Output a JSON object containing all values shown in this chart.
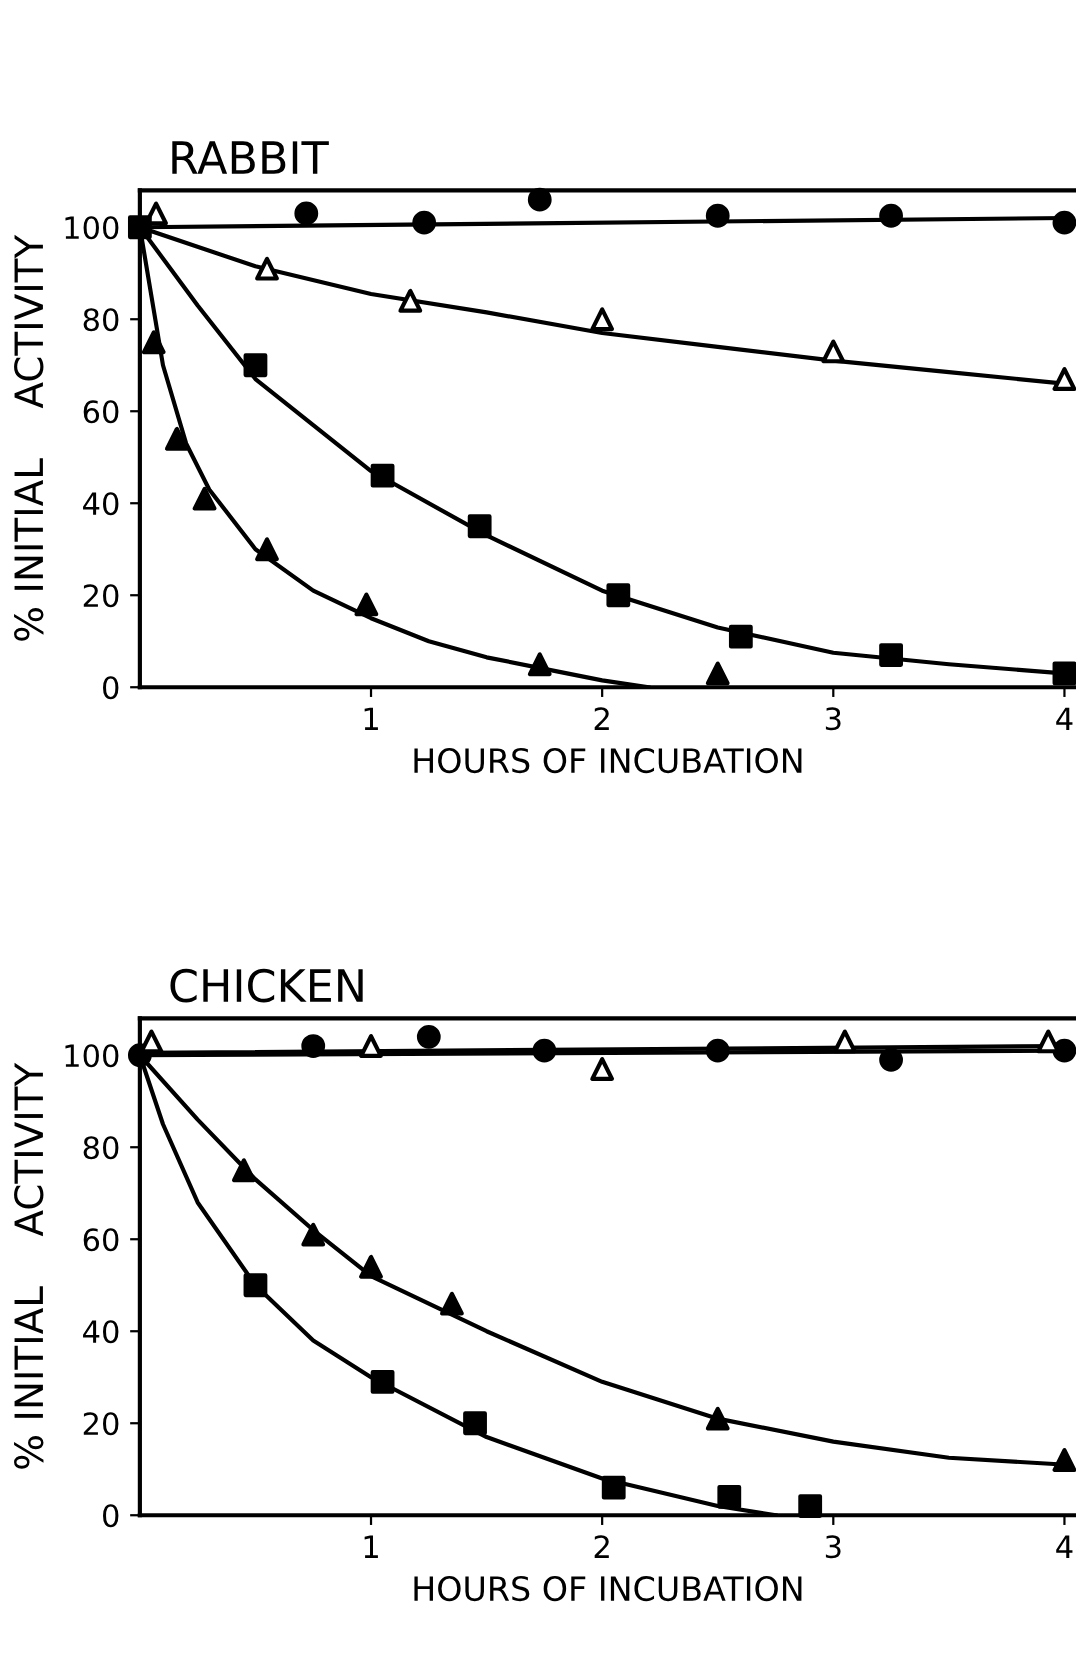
{
  "chart_data": [
    {
      "type": "scatter",
      "title": "RABBIT",
      "xlabel": "HOURS OF INCUBATION",
      "ylabel": "% INITIAL    ACTIVITY",
      "xlim": [
        0,
        4.05
      ],
      "ylim": [
        0,
        108
      ],
      "xticks": [
        1,
        2,
        3,
        4
      ],
      "yticks": [
        0,
        20,
        40,
        60,
        80,
        100
      ],
      "grid": false,
      "legend": false,
      "series": [
        {
          "marker": "circle",
          "color": "#000000",
          "x": [
            0.72,
            1.23,
            1.73,
            2.5,
            3.25,
            4
          ],
          "values": [
            103,
            101,
            106,
            102.5,
            102.5,
            101
          ]
        },
        {
          "marker": "triangle",
          "color": "#ffffff",
          "x": [
            0.07,
            0.55,
            1.17,
            2.0,
            3.0,
            4.0
          ],
          "values": [
            103,
            91,
            84,
            80,
            73,
            67
          ]
        },
        {
          "marker": "square",
          "color": "#000000",
          "x": [
            0,
            0.5,
            1.05,
            1.47,
            2.07,
            2.6,
            3.25,
            4
          ],
          "values": [
            100,
            70,
            46,
            35,
            20,
            11,
            7,
            3
          ]
        },
        {
          "marker": "triangle",
          "color": "#000000",
          "x": [
            0.06,
            0.16,
            0.28,
            0.55,
            0.98,
            1.73,
            2.5
          ],
          "values": [
            75,
            54,
            41,
            30,
            18,
            5,
            3
          ]
        },
        {
          "type": "line",
          "marker": "none",
          "line_style": "solid",
          "color": "#000000",
          "x": [
            0,
            4
          ],
          "values": [
            100,
            102
          ]
        },
        {
          "type": "line",
          "marker": "none",
          "line_style": "solid",
          "color": "#000000",
          "x": [
            0,
            0.5,
            1,
            1.5,
            2,
            2.5,
            3,
            3.5,
            4
          ],
          "values": [
            100,
            91.5,
            85.5,
            81.5,
            77,
            74,
            71,
            68.5,
            66
          ]
        },
        {
          "type": "line",
          "marker": "none",
          "line_style": "solid",
          "color": "#000000",
          "x": [
            0,
            0.25,
            0.5,
            0.75,
            1,
            1.5,
            2,
            2.5,
            3,
            3.5,
            4
          ],
          "values": [
            100,
            83,
            67,
            57,
            47,
            33,
            21,
            13,
            7.5,
            5,
            3
          ]
        },
        {
          "type": "line",
          "marker": "none",
          "line_style": "solid",
          "color": "#000000",
          "x": [
            0,
            0.05,
            0.1,
            0.2,
            0.3,
            0.5,
            0.75,
            1,
            1.25,
            1.5,
            1.75,
            2,
            2.2
          ],
          "values": [
            100,
            85,
            70,
            53,
            43,
            30,
            21,
            15,
            10,
            6.5,
            4,
            1.5,
            0
          ]
        }
      ]
    },
    {
      "type": "scatter",
      "title": "CHICKEN",
      "xlabel": "HOURS OF INCUBATION",
      "ylabel": "% INITIAL    ACTIVITY",
      "xlim": [
        0,
        4.05
      ],
      "ylim": [
        0,
        108
      ],
      "xticks": [
        1,
        2,
        3,
        4
      ],
      "yticks": [
        0,
        20,
        40,
        60,
        80,
        100
      ],
      "grid": false,
      "legend": false,
      "series": [
        {
          "marker": "circle",
          "color": "#000000",
          "x": [
            0,
            0.75,
            1.25,
            1.75,
            2.5,
            3.25,
            4
          ],
          "values": [
            100,
            102,
            104,
            101,
            101,
            99,
            101
          ]
        },
        {
          "marker": "triangle",
          "color": "#ffffff",
          "x": [
            0.05,
            1.0,
            2.0,
            3.05,
            3.93
          ],
          "values": [
            103,
            102,
            97,
            103,
            103
          ]
        },
        {
          "marker": "square",
          "color": "#000000",
          "x": [
            0.5,
            1.05,
            1.45,
            2.05,
            2.55,
            2.9
          ],
          "values": [
            50,
            29,
            20,
            6,
            4,
            2
          ]
        },
        {
          "marker": "triangle",
          "color": "#000000",
          "x": [
            0.45,
            0.75,
            1.0,
            1.35,
            2.5,
            4
          ],
          "values": [
            75,
            61,
            54,
            46,
            21,
            12
          ]
        },
        {
          "type": "line",
          "marker": "none",
          "line_style": "solid",
          "color": "#000000",
          "x": [
            0,
            4
          ],
          "values": [
            100.5,
            102
          ]
        },
        {
          "type": "line",
          "marker": "none",
          "line_style": "solid",
          "color": "#000000",
          "x": [
            0,
            4
          ],
          "values": [
            100,
            101
          ]
        },
        {
          "type": "line",
          "marker": "none",
          "line_style": "solid",
          "color": "#000000",
          "x": [
            0,
            0.25,
            0.5,
            0.75,
            1,
            1.5,
            2,
            2.5,
            3,
            3.5,
            4
          ],
          "values": [
            100,
            86,
            73,
            62,
            52,
            40,
            29,
            21,
            16,
            12.5,
            11
          ]
        },
        {
          "type": "line",
          "marker": "none",
          "line_style": "solid",
          "color": "#000000",
          "x": [
            0,
            0.1,
            0.25,
            0.5,
            0.75,
            1,
            1.5,
            2,
            2.5,
            2.75
          ],
          "values": [
            100,
            85,
            68,
            50,
            38,
            30,
            17,
            8,
            2,
            0
          ]
        }
      ]
    }
  ]
}
